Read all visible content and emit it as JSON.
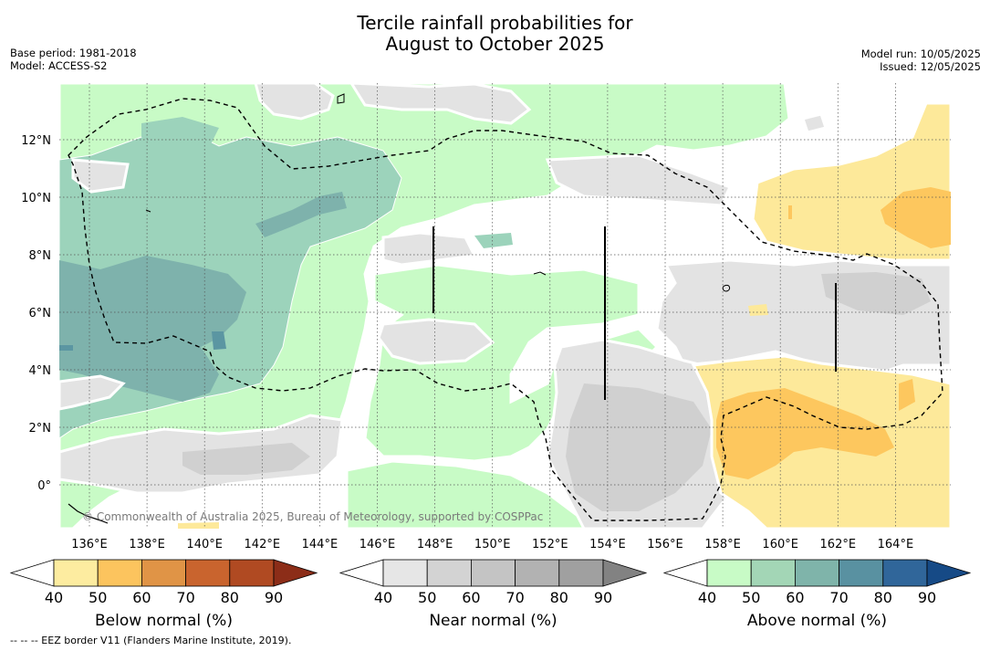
{
  "title_line1": "Tercile rainfall probabilities for",
  "title_line2": "August to October 2025",
  "meta_left": [
    "Base period: 1981-2018",
    "Model: ACCESS-S2"
  ],
  "meta_right": [
    "Model run: 10/05/2025",
    "Issued: 12/05/2025"
  ],
  "map": {
    "lon_labels": [
      "136°E",
      "138°E",
      "140°E",
      "142°E",
      "144°E",
      "146°E",
      "148°E",
      "150°E",
      "152°E",
      "154°E",
      "156°E",
      "158°E",
      "160°E",
      "162°E",
      "164°E"
    ],
    "lat_labels": [
      "12°N",
      "10°N",
      "8°N",
      "6°N",
      "4°N",
      "2°N",
      "0°"
    ],
    "copyright": "© Commonwealth of Australia 2025, Bureau of Meteorology, supported by COSPPac"
  },
  "colorbars": [
    {
      "name": "below",
      "title": "Below normal (%)",
      "ticks": [
        "40",
        "50",
        "60",
        "70",
        "80",
        "90"
      ],
      "colors": [
        "#ffffff",
        "#fdeca0",
        "#fcc45e",
        "#e09446",
        "#c9642e",
        "#b04a22",
        "#8c2d18"
      ]
    },
    {
      "name": "near",
      "title": "Near normal (%)",
      "ticks": [
        "40",
        "50",
        "60",
        "70",
        "80",
        "90"
      ],
      "colors": [
        "#ffffff",
        "#e6e6e6",
        "#d3d3d3",
        "#c4c4c4",
        "#b2b2b2",
        "#a0a0a0",
        "#828282"
      ]
    },
    {
      "name": "above",
      "title": "Above normal (%)",
      "ticks": [
        "40",
        "50",
        "60",
        "70",
        "80",
        "90"
      ],
      "colors": [
        "#ffffff",
        "#c8fbc6",
        "#a3d6b6",
        "#7fb4aa",
        "#5991a1",
        "#30669a",
        "#164a86"
      ]
    }
  ],
  "footnote": "-- -- -- EEZ border V11 (Flanders Marine Institute, 2019).",
  "colors": {
    "above_50": "#c8fbc6",
    "above_60": "#9cd3bb",
    "above_70": "#7eb2ac",
    "above_80": "#5b96a2",
    "near_50": "#e3e3e3",
    "near_60": "#d0d0d0",
    "below_50": "#fde99a",
    "below_60": "#fdc75e"
  }
}
